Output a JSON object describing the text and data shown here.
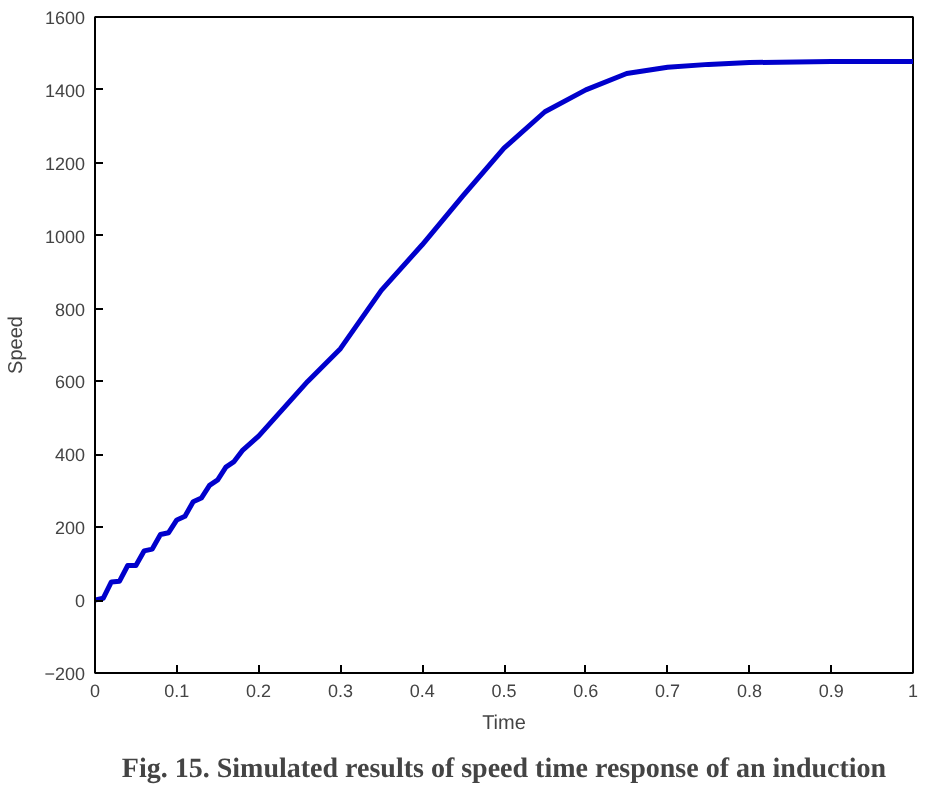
{
  "chart_data": {
    "type": "line",
    "xlabel": "Time",
    "ylabel": "Speed",
    "annotations": [
      "Fig. 15. Simulated results of speed time response of an induction"
    ],
    "xlim": [
      0,
      1
    ],
    "ylim": [
      -200,
      1600
    ],
    "xticks": [
      0,
      0.1,
      0.2,
      0.3,
      0.4,
      0.5,
      0.6,
      0.7,
      0.8,
      0.9,
      1
    ],
    "yticks": [
      -200,
      0,
      200,
      400,
      600,
      800,
      1000,
      1200,
      1400,
      1600
    ],
    "grid": false,
    "series": [
      {
        "color": "#0000cc",
        "x": [
          0,
          0.01,
          0.02,
          0.03,
          0.04,
          0.05,
          0.06,
          0.07,
          0.08,
          0.09,
          0.1,
          0.11,
          0.12,
          0.13,
          0.14,
          0.15,
          0.16,
          0.17,
          0.18,
          0.19,
          0.2,
          0.22,
          0.24,
          0.26,
          0.3,
          0.35,
          0.4,
          0.45,
          0.5,
          0.55,
          0.6,
          0.65,
          0.7,
          0.75,
          0.8,
          0.9,
          1.0
        ],
        "values": [
          0,
          5,
          50,
          52,
          95,
          95,
          135,
          140,
          180,
          185,
          220,
          230,
          270,
          280,
          315,
          330,
          365,
          380,
          410,
          430,
          450,
          500,
          550,
          600,
          690,
          850,
          975,
          1110,
          1240,
          1340,
          1400,
          1445,
          1462,
          1470,
          1475,
          1478,
          1478
        ]
      }
    ]
  }
}
